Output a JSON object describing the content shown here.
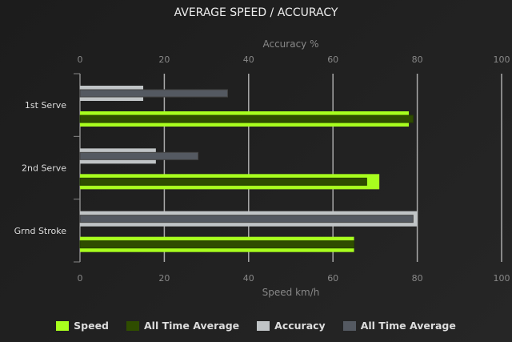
{
  "chart_data": {
    "type": "bar",
    "orientation": "horizontal",
    "title": "AVERAGE SPEED / ACCURACY",
    "categories": [
      "1st Serve",
      "2nd Serve",
      "Grnd Stroke"
    ],
    "top_axis": {
      "label": "Accuracy %",
      "range": [
        0,
        100
      ],
      "ticks": [
        0,
        20,
        40,
        60,
        80,
        100
      ]
    },
    "bottom_axis": {
      "label": "Speed km/h",
      "range": [
        0,
        100
      ],
      "ticks": [
        0,
        20,
        40,
        60,
        80,
        100
      ]
    },
    "grid": true,
    "legend_position": "bottom",
    "series": [
      {
        "name": "Speed",
        "axis": "bottom",
        "color": "#a8ff1e",
        "values": [
          78,
          71,
          65
        ]
      },
      {
        "name": "All Time Average",
        "axis": "bottom",
        "color": "#2f4d00",
        "values": [
          79,
          68,
          65
        ]
      },
      {
        "name": "Accuracy",
        "axis": "top",
        "color": "#c0c4c6",
        "values": [
          15,
          18,
          80
        ]
      },
      {
        "name": "All Time Average",
        "axis": "top",
        "color": "#545961",
        "values": [
          35,
          28,
          79
        ]
      }
    ]
  }
}
